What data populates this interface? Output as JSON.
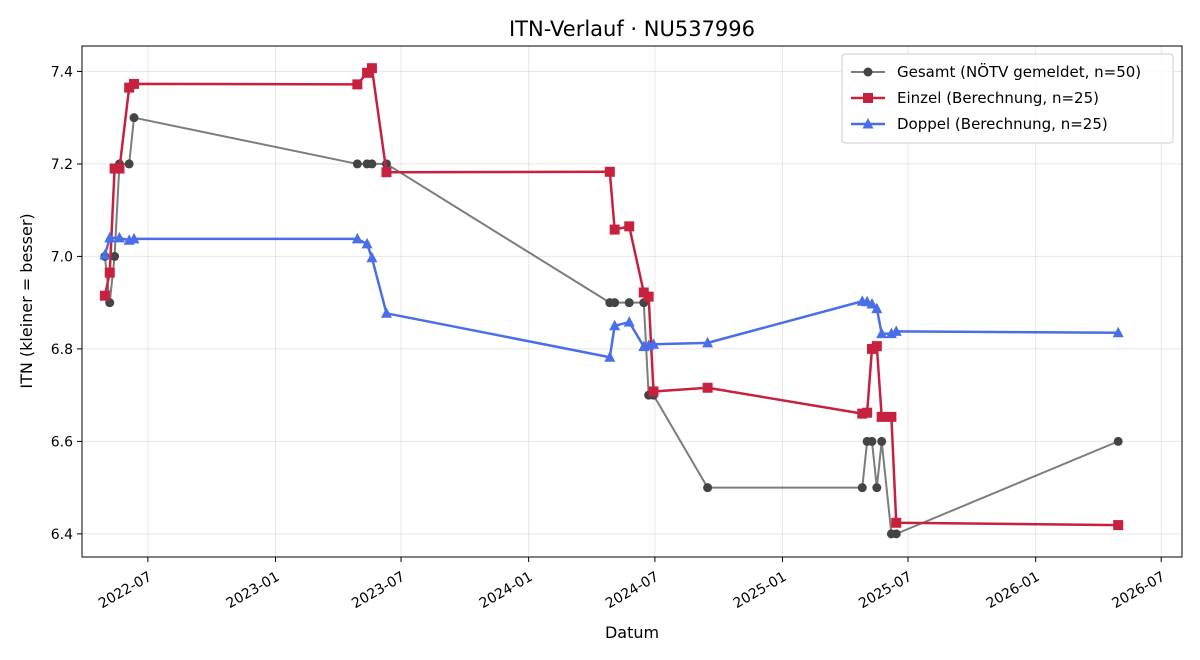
{
  "chart_data": {
    "type": "line",
    "title": "ITN-Verlauf · NU537996",
    "xlabel": "Datum",
    "ylabel": "ITN  (kleiner = besser)",
    "ylim": [
      6.35,
      7.455
    ],
    "xlim": [
      "2022-03-28",
      "2026-07-31"
    ],
    "x_ticks": [
      "2022-07",
      "2023-01",
      "2023-07",
      "2024-01",
      "2024-07",
      "2025-01",
      "2025-07",
      "2026-01",
      "2026-07"
    ],
    "y_ticks": [
      "6.4",
      "6.6",
      "6.8",
      "7.0",
      "7.2",
      "7.4"
    ],
    "grid": true,
    "legend_position": "top-right",
    "series": [
      {
        "name": "Gesamt (NÖTV gemeldet, n=50)",
        "color": "#444444",
        "marker": "circle",
        "x": [
          "2022-04-30",
          "2022-05-07",
          "2022-05-14",
          "2022-05-21",
          "2022-06-04",
          "2022-06-11",
          "2023-04-29",
          "2023-05-13",
          "2023-05-20",
          "2023-06-10",
          "2024-04-27",
          "2024-05-04",
          "2024-05-25",
          "2024-06-15",
          "2024-06-22",
          "2024-06-29",
          "2024-09-15",
          "2025-04-26",
          "2025-05-03",
          "2025-05-10",
          "2025-05-17",
          "2025-05-24",
          "2025-06-07",
          "2025-06-14",
          "2026-04-30"
        ],
        "y": [
          7.0,
          6.9,
          7.0,
          7.2,
          7.2,
          7.3,
          7.2,
          7.2,
          7.2,
          7.2,
          6.9,
          6.9,
          6.9,
          6.9,
          6.7,
          6.7,
          6.5,
          6.5,
          6.6,
          6.6,
          6.5,
          6.6,
          6.4,
          6.4,
          6.6
        ]
      },
      {
        "name": "Einzel (Berechnung, n=25)",
        "color": "#c8203f",
        "marker": "square",
        "x": [
          "2022-04-30",
          "2022-05-07",
          "2022-05-14",
          "2022-05-21",
          "2022-06-04",
          "2022-06-11",
          "2023-04-29",
          "2023-05-13",
          "2023-05-20",
          "2023-06-10",
          "2024-04-27",
          "2024-05-04",
          "2024-05-25",
          "2024-06-15",
          "2024-06-22",
          "2024-06-29",
          "2024-09-15",
          "2025-04-26",
          "2025-05-03",
          "2025-05-10",
          "2025-05-17",
          "2025-05-24",
          "2025-06-07",
          "2025-06-14",
          "2026-04-30"
        ],
        "y": [
          6.915,
          6.965,
          7.19,
          7.19,
          7.365,
          7.373,
          7.372,
          7.397,
          7.407,
          7.182,
          7.183,
          7.058,
          7.065,
          6.922,
          6.913,
          6.708,
          6.716,
          6.66,
          6.662,
          6.8,
          6.806,
          6.653,
          6.653,
          6.424,
          6.419
        ]
      },
      {
        "name": "Doppel (Berechnung, n=25)",
        "color": "#4a6ee8",
        "marker": "triangle",
        "x": [
          "2022-04-30",
          "2022-05-07",
          "2022-05-21",
          "2022-06-04",
          "2022-06-11",
          "2023-04-29",
          "2023-05-13",
          "2023-05-20",
          "2023-06-10",
          "2024-04-27",
          "2024-05-04",
          "2024-05-25",
          "2024-06-15",
          "2024-06-22",
          "2024-06-29",
          "2024-09-15",
          "2025-04-26",
          "2025-05-03",
          "2025-05-10",
          "2025-05-17",
          "2025-05-24",
          "2025-06-07",
          "2025-06-14",
          "2026-04-30"
        ],
        "y": [
          7.003,
          7.04,
          7.04,
          7.035,
          7.038,
          7.038,
          7.027,
          6.997,
          6.877,
          6.782,
          6.85,
          6.858,
          6.805,
          6.807,
          6.81,
          6.813,
          6.903,
          6.902,
          6.897,
          6.887,
          6.833,
          6.833,
          6.838,
          6.835
        ]
      }
    ]
  }
}
